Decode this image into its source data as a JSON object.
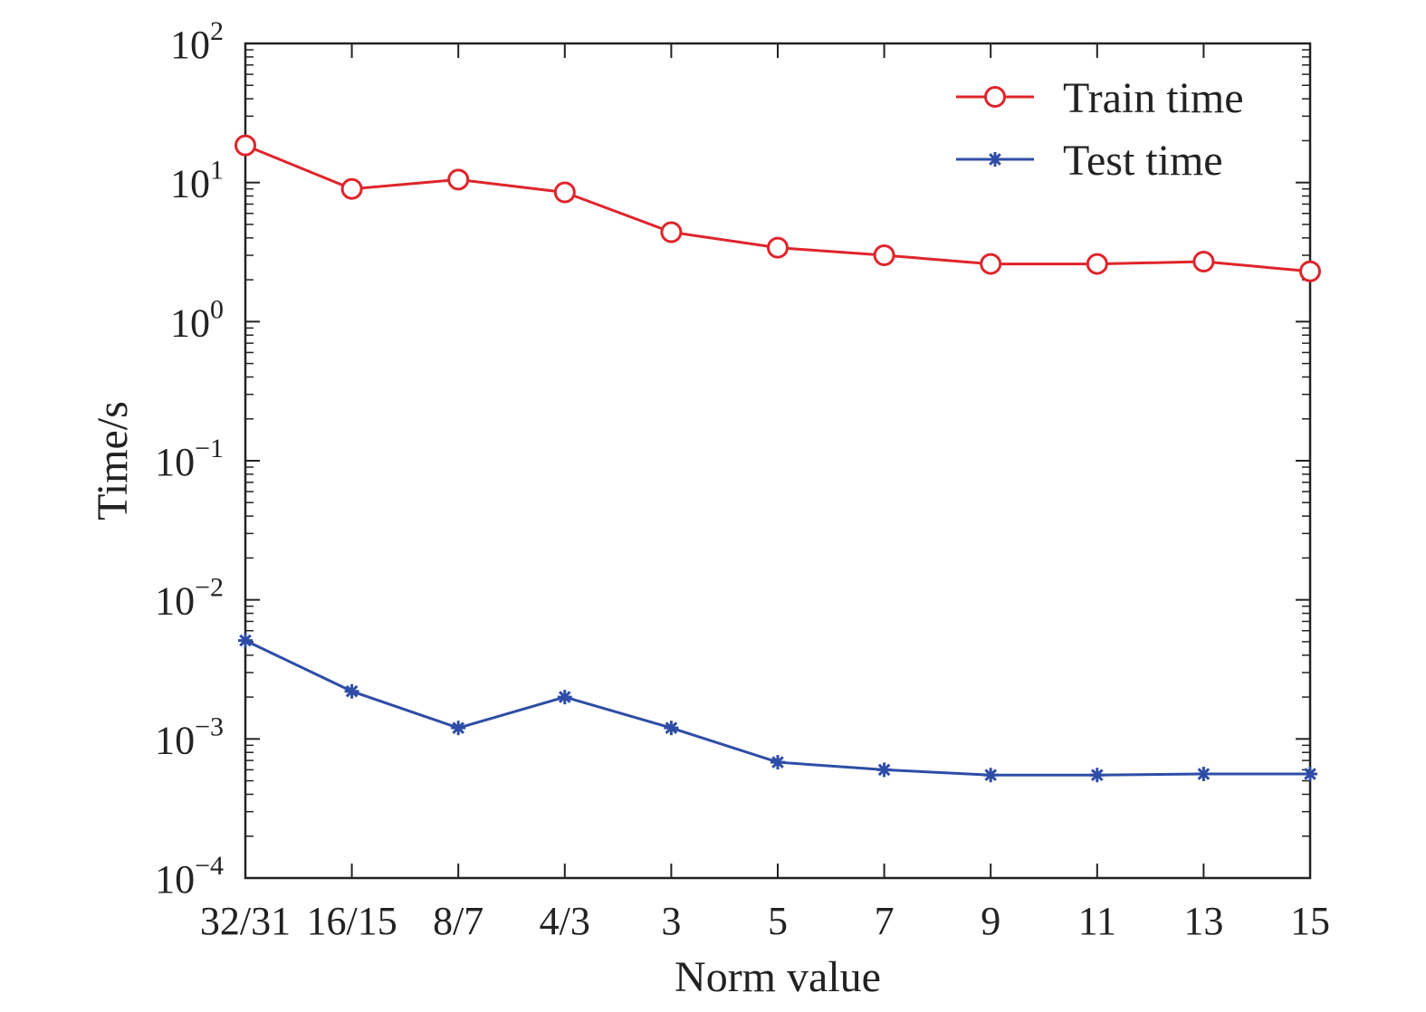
{
  "chart_data": {
    "type": "line",
    "title": "",
    "xlabel": "Norm value",
    "ylabel": "Time/s",
    "yscale": "log",
    "ylim": [
      0.0001,
      100
    ],
    "y_tick_exponents": [
      "2",
      "1",
      "0",
      "−1",
      "−2",
      "−3",
      "−4"
    ],
    "y_tick_values": [
      100,
      10,
      1,
      0.1,
      0.01,
      0.001,
      0.0001
    ],
    "y_tick_base": "10",
    "categories": [
      "32/31",
      "16/15",
      "8/7",
      "4/3",
      "3",
      "5",
      "7",
      "9",
      "11",
      "13",
      "15"
    ],
    "grid": false,
    "legend_position": "top-right",
    "series": [
      {
        "name": "Train time",
        "color": "#e0242b",
        "marker": "circle",
        "values": [
          18.5,
          9.0,
          10.5,
          8.5,
          4.4,
          3.4,
          3.0,
          2.6,
          2.6,
          2.7,
          2.3
        ]
      },
      {
        "name": "Test time",
        "color": "#2e4da7",
        "marker": "asterisk",
        "values": [
          0.0051,
          0.0022,
          0.0012,
          0.002,
          0.0012,
          0.00068,
          0.0006,
          0.00055,
          0.00055,
          0.00056,
          0.00056
        ]
      }
    ]
  }
}
